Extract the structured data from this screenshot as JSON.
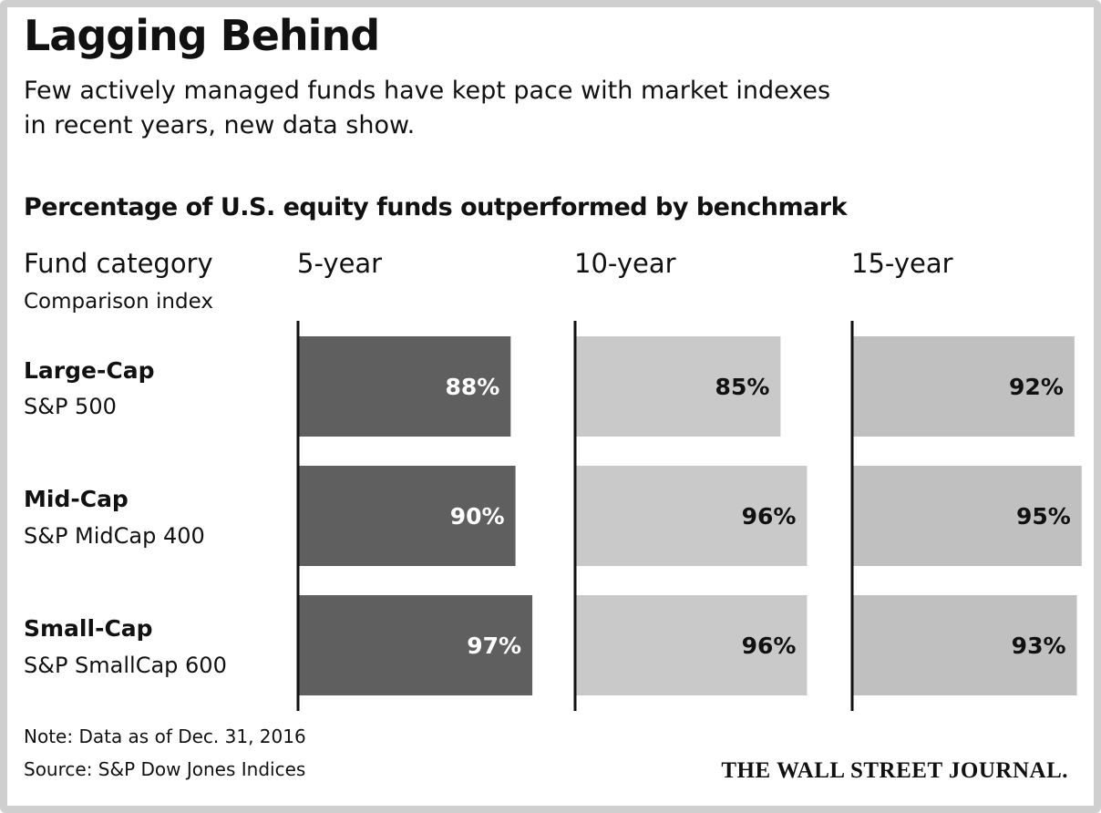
{
  "chart_data": {
    "type": "bar",
    "orientation": "horizontal",
    "title": "Lagging Behind",
    "subtitle": "Few actively managed funds have kept pace with market indexes in recent years, new data show.",
    "subtitle_lines": [
      "Few actively managed funds have kept pace with market indexes",
      "in recent years, new data show."
    ],
    "chart_title": "Percentage of U.S. equity funds outperformed by benchmark",
    "row_header": "Fund category",
    "row_subheader": "Comparison index",
    "categories": [
      {
        "name": "Large-Cap",
        "index": "S&P 500"
      },
      {
        "name": "Mid-Cap",
        "index": "S&P MidCap 400"
      },
      {
        "name": "Small-Cap",
        "index": "S&P SmallCap 600"
      }
    ],
    "series": [
      {
        "name": "5-year",
        "values": [
          88,
          90,
          97
        ],
        "labels": [
          "88%",
          "90%",
          "97%"
        ],
        "color": "#5f5f5f",
        "label_color": "#ffffff"
      },
      {
        "name": "10-year",
        "values": [
          85,
          96,
          96
        ],
        "labels": [
          "85%",
          "96%",
          "96%"
        ],
        "color": "#c9c9c9",
        "label_color": "#111111"
      },
      {
        "name": "15-year",
        "values": [
          92,
          95,
          93
        ],
        "labels": [
          "92%",
          "95%",
          "93%"
        ],
        "color": "#c0c0c0",
        "label_color": "#111111"
      }
    ],
    "xlim": [
      0,
      100
    ],
    "grid": false,
    "note": "Note: Data as of Dec. 31, 2016",
    "source": "Source: S&P Dow Jones Indices",
    "credit": "THE WALL STREET JOURNAL."
  }
}
